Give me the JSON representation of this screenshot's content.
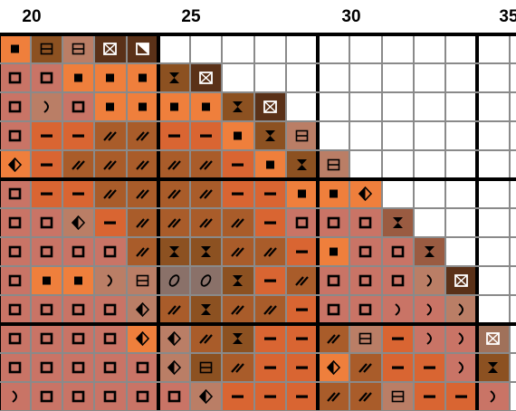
{
  "chart_header": {
    "column_numbers": [
      "20",
      "25",
      "30",
      "35"
    ]
  },
  "palette": {
    "_": "#ffffff",
    "A": "#ef7f3c",
    "B": "#d96532",
    "C": "#c97466",
    "D": "#ba7e66",
    "E": "#a95c2a",
    "F": "#8c5121",
    "G": "#5a3118",
    "H": "#8a7169",
    "I": "#a0715a",
    "J": "#9a5b41"
  },
  "symbols": {
    "s": "square-outline",
    "d": "filled-square",
    "m": "dash",
    "l": "double-slash",
    "h": "hourglass",
    "x": "x-box",
    "g": "half-diamond",
    "c": "crescent",
    "b": "ruled-box",
    "t": "half-triangle",
    "o": "oval"
  },
  "grid_rows": [
    [
      "Ad",
      "Fb",
      "Db",
      "Gx",
      "Gt",
      "__",
      "__",
      "__",
      "__",
      "__",
      "__",
      "__",
      "__",
      "__",
      "__",
      "__",
      "__"
    ],
    [
      "Cs",
      "Cs",
      "Ad",
      "Ad",
      "Ad",
      "Fh",
      "Gx",
      "__",
      "__",
      "__",
      "__",
      "__",
      "__",
      "__",
      "__",
      "__",
      "__"
    ],
    [
      "Cs",
      "Dc",
      "Cs",
      "Ad",
      "Ad",
      "Ad",
      "Ad",
      "Fh",
      "Gx",
      "__",
      "__",
      "__",
      "__",
      "__",
      "__",
      "__",
      "__"
    ],
    [
      "Cs",
      "Bm",
      "Bm",
      "El",
      "El",
      "Bm",
      "Bm",
      "Ad",
      "Fh",
      "Db",
      "__",
      "__",
      "__",
      "__",
      "__",
      "__",
      "__"
    ],
    [
      "Ag",
      "Bm",
      "El",
      "El",
      "El",
      "El",
      "El",
      "Bm",
      "Ad",
      "Fh",
      "Db",
      "__",
      "__",
      "__",
      "__",
      "__",
      "__"
    ],
    [
      "Cs",
      "Bm",
      "Bm",
      "El",
      "El",
      "El",
      "El",
      "Bm",
      "Bm",
      "Ad",
      "Ad",
      "Ag",
      "__",
      "__",
      "__",
      "__",
      "__"
    ],
    [
      "Cs",
      "Cs",
      "Dg",
      "Bm",
      "El",
      "El",
      "El",
      "El",
      "Bm",
      "Cs",
      "Cs",
      "Cs",
      "Jh",
      "__",
      "__",
      "__",
      "__"
    ],
    [
      "Cs",
      "Cs",
      "Cs",
      "Cs",
      "El",
      "Fh",
      "Fh",
      "El",
      "El",
      "Bm",
      "Ad",
      "Cs",
      "Cs",
      "Jh",
      "__",
      "__",
      "__"
    ],
    [
      "Cs",
      "Ad",
      "Ad",
      "Dc",
      "Db",
      "Ho",
      "Ho",
      "Fh",
      "Bm",
      "El",
      "Cs",
      "Cs",
      "Cs",
      "Dc",
      "Gx",
      "__",
      "__"
    ],
    [
      "Cs",
      "Cs",
      "Cs",
      "Cs",
      "Dg",
      "El",
      "Fh",
      "El",
      "El",
      "Bm",
      "Cs",
      "Cs",
      "Cc",
      "Cc",
      "Dc",
      "__",
      "__"
    ],
    [
      "Cs",
      "Cs",
      "Cs",
      "Cs",
      "Ag",
      "Dg",
      "El",
      "Fh",
      "Bm",
      "Bm",
      "El",
      "Db",
      "Bm",
      "Cc",
      "Cc",
      "Ix",
      "__"
    ],
    [
      "Cs",
      "Cs",
      "Cs",
      "Cs",
      "Cs",
      "Dg",
      "Fb",
      "El",
      "Bm",
      "Bm",
      "Ag",
      "El",
      "Bm",
      "Bm",
      "Cc",
      "Fh",
      "__"
    ],
    [
      "Cc",
      "Cs",
      "Cs",
      "Cs",
      "Cs",
      "Cs",
      "Dg",
      "Bm",
      "Bm",
      "Bm",
      "El",
      "El",
      "Db",
      "Bm",
      "Bm",
      "Cc",
      "__"
    ]
  ]
}
